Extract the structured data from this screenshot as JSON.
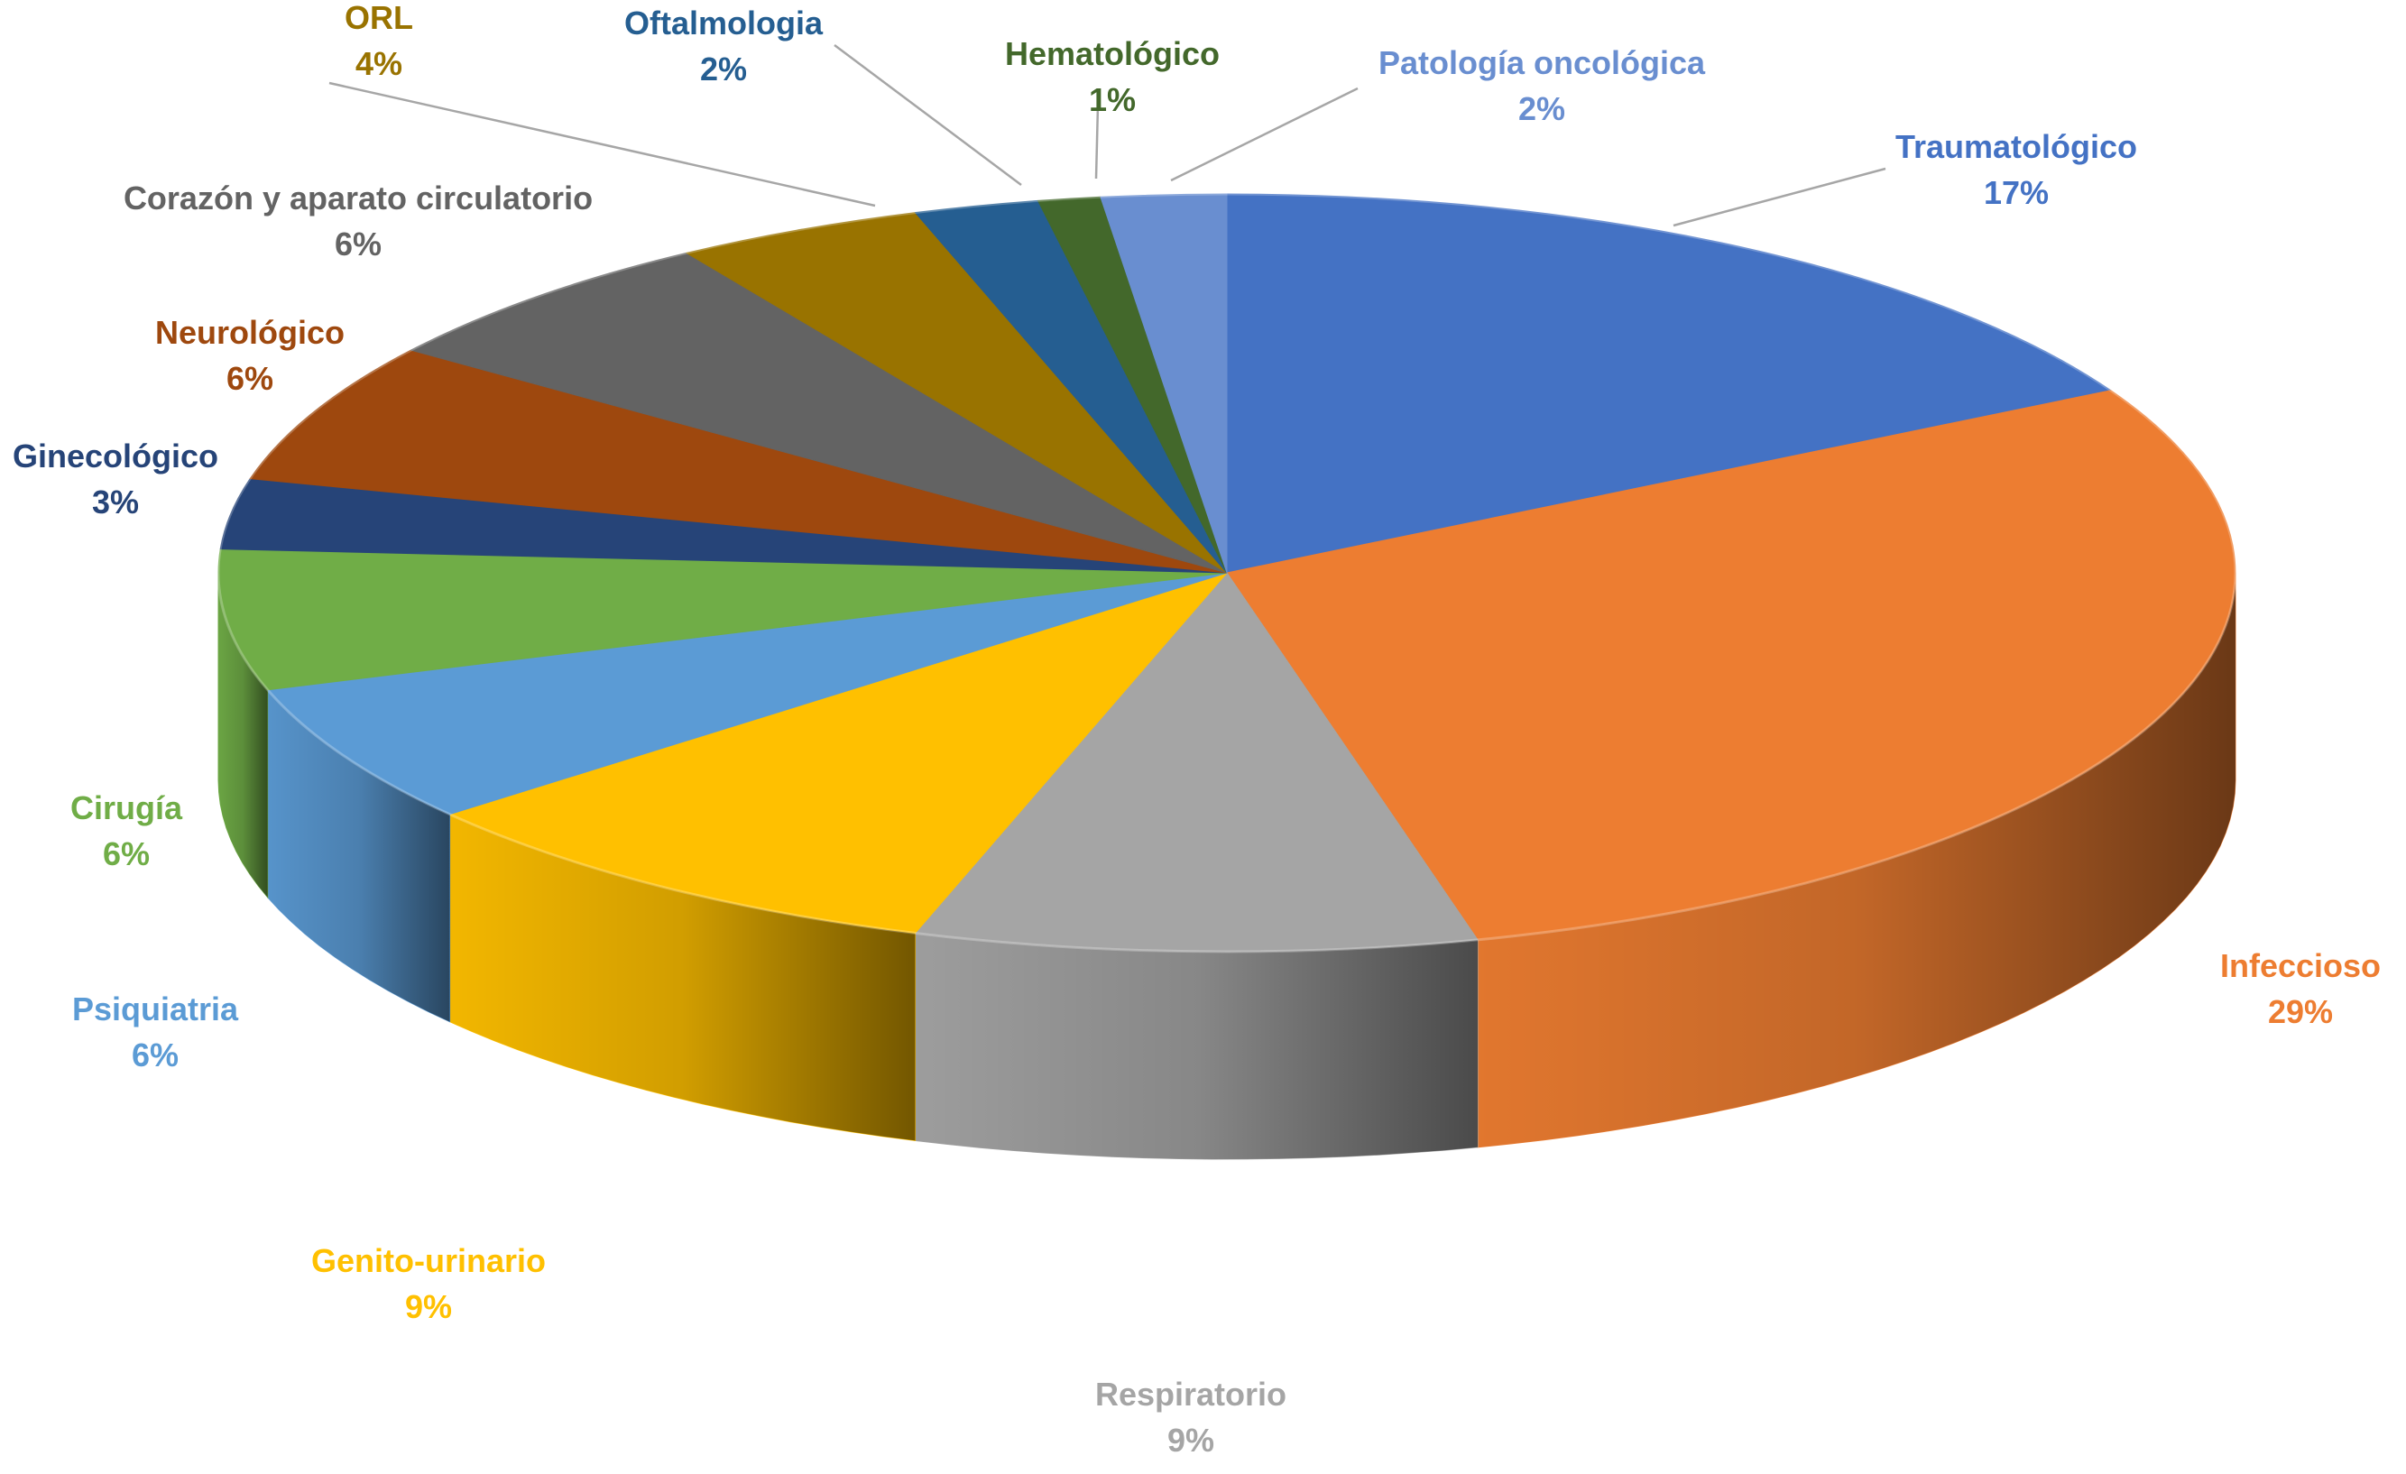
{
  "chart_data": {
    "type": "pie",
    "title": "",
    "slices": [
      {
        "label": "Traumatológico",
        "pct_label": "17%",
        "value": 17,
        "color": "#4472C4"
      },
      {
        "label": "Infeccioso",
        "pct_label": "29%",
        "value": 29,
        "color": "#ED7D31"
      },
      {
        "label": "Respiratorio",
        "pct_label": "9%",
        "value": 9,
        "color": "#A5A5A5"
      },
      {
        "label": "Genito-urinario",
        "pct_label": "9%",
        "value": 9,
        "color": "#FFC000"
      },
      {
        "label": "Psiquiatria",
        "pct_label": "6%",
        "value": 6,
        "color": "#5B9BD5"
      },
      {
        "label": "Cirugía",
        "pct_label": "6%",
        "value": 6,
        "color": "#70AD47"
      },
      {
        "label": "Ginecológico",
        "pct_label": "3%",
        "value": 3,
        "color": "#264478"
      },
      {
        "label": "Neurológico",
        "pct_label": "6%",
        "value": 6,
        "color": "#9E480E"
      },
      {
        "label": "Corazón y aparato circulatorio",
        "pct_label": "6%",
        "value": 6,
        "color": "#636363"
      },
      {
        "label": "ORL",
        "pct_label": "4%",
        "value": 4,
        "color": "#997300"
      },
      {
        "label": "Oftalmologia",
        "pct_label": "2%",
        "value": 2,
        "color": "#255E91"
      },
      {
        "label": "Hematológico",
        "pct_label": "1%",
        "value": 1,
        "color": "#43682B"
      },
      {
        "label": "Patología oncológica",
        "pct_label": "2%",
        "value": 2,
        "color": "#698ED0"
      }
    ]
  }
}
